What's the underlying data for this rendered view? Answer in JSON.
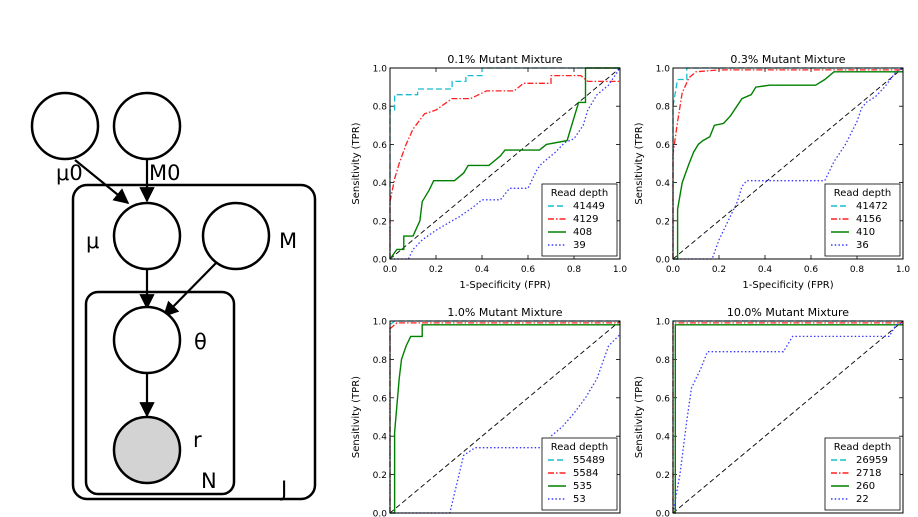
{
  "diagram": {
    "nodes": [
      {
        "id": "mu0",
        "label": "μ0",
        "observed": false
      },
      {
        "id": "M0",
        "label": "M0",
        "observed": false
      },
      {
        "id": "mu",
        "label": "μ",
        "observed": false
      },
      {
        "id": "M",
        "label": "M",
        "observed": false
      },
      {
        "id": "theta",
        "label": "θ",
        "observed": false
      },
      {
        "id": "r",
        "label": "r",
        "observed": true
      }
    ],
    "edges": [
      {
        "from": "mu0",
        "to": "mu"
      },
      {
        "from": "M0",
        "to": "mu"
      },
      {
        "from": "mu",
        "to": "theta"
      },
      {
        "from": "M",
        "to": "theta"
      },
      {
        "from": "theta",
        "to": "r"
      }
    ],
    "plates": [
      {
        "id": "J",
        "label": "J"
      },
      {
        "id": "N",
        "label": "N"
      }
    ],
    "colors": {
      "observed_fill": "#d3d3d3",
      "stroke": "#000000"
    }
  },
  "chart_data": [
    {
      "type": "line",
      "title": "0.1% Mutant Mixture",
      "xlabel": "1-Specificity (FPR)",
      "ylabel": "Sensitivity (TPR)",
      "xlim": [
        0,
        1
      ],
      "ylim": [
        0,
        1
      ],
      "xticks": [
        "0.0",
        "0.2",
        "0.4",
        "0.6",
        "0.8",
        "1.0"
      ],
      "yticks": [
        "0.0",
        "0.2",
        "0.4",
        "0.6",
        "0.8",
        "1.0"
      ],
      "legend_title": "Read depth",
      "legend_position": "lower-right",
      "diagonal": true,
      "series": [
        {
          "name": "41449",
          "color": "#17becf",
          "dash": "dashed",
          "points": [
            [
              0,
              0
            ],
            [
              0,
              0.78
            ],
            [
              0.02,
              0.78
            ],
            [
              0.02,
              0.86
            ],
            [
              0.12,
              0.86
            ],
            [
              0.12,
              0.89
            ],
            [
              0.27,
              0.89
            ],
            [
              0.27,
              0.93
            ],
            [
              0.33,
              0.93
            ],
            [
              0.33,
              0.96
            ],
            [
              0.4,
              0.96
            ],
            [
              0.4,
              1
            ],
            [
              1,
              1
            ]
          ]
        },
        {
          "name": "4129",
          "color": "#ff2020",
          "dash": "dashdot",
          "points": [
            [
              0,
              0
            ],
            [
              0,
              0.3
            ],
            [
              0.02,
              0.42
            ],
            [
              0.04,
              0.5
            ],
            [
              0.07,
              0.6
            ],
            [
              0.1,
              0.68
            ],
            [
              0.15,
              0.76
            ],
            [
              0.2,
              0.78
            ],
            [
              0.27,
              0.84
            ],
            [
              0.35,
              0.84
            ],
            [
              0.42,
              0.88
            ],
            [
              0.54,
              0.88
            ],
            [
              0.58,
              0.92
            ],
            [
              0.7,
              0.92
            ],
            [
              0.7,
              0.96
            ],
            [
              0.83,
              0.96
            ],
            [
              0.86,
              0.93
            ],
            [
              1,
              0.93
            ]
          ]
        },
        {
          "name": "408",
          "color": "#008000",
          "dash": "solid",
          "points": [
            [
              0,
              0
            ],
            [
              0.03,
              0.05
            ],
            [
              0.06,
              0.05
            ],
            [
              0.06,
              0.12
            ],
            [
              0.1,
              0.12
            ],
            [
              0.13,
              0.2
            ],
            [
              0.14,
              0.3
            ],
            [
              0.17,
              0.36
            ],
            [
              0.19,
              0.41
            ],
            [
              0.28,
              0.41
            ],
            [
              0.32,
              0.45
            ],
            [
              0.34,
              0.49
            ],
            [
              0.43,
              0.49
            ],
            [
              0.48,
              0.54
            ],
            [
              0.5,
              0.57
            ],
            [
              0.65,
              0.57
            ],
            [
              0.68,
              0.6
            ],
            [
              0.77,
              0.62
            ],
            [
              0.82,
              0.82
            ],
            [
              0.85,
              0.82
            ],
            [
              0.85,
              1
            ],
            [
              1,
              1
            ]
          ]
        },
        {
          "name": "39",
          "color": "#3a3aff",
          "dash": "dotted",
          "points": [
            [
              0,
              0
            ],
            [
              0.08,
              0
            ],
            [
              0.1,
              0.05
            ],
            [
              0.14,
              0.1
            ],
            [
              0.2,
              0.15
            ],
            [
              0.27,
              0.2
            ],
            [
              0.3,
              0.22
            ],
            [
              0.36,
              0.27
            ],
            [
              0.4,
              0.31
            ],
            [
              0.48,
              0.31
            ],
            [
              0.52,
              0.37
            ],
            [
              0.6,
              0.37
            ],
            [
              0.64,
              0.47
            ],
            [
              0.66,
              0.5
            ],
            [
              0.72,
              0.56
            ],
            [
              0.76,
              0.61
            ],
            [
              0.8,
              0.63
            ],
            [
              0.84,
              0.7
            ],
            [
              0.86,
              0.78
            ],
            [
              0.9,
              0.86
            ],
            [
              0.95,
              0.91
            ],
            [
              1,
              1
            ]
          ]
        }
      ]
    },
    {
      "type": "line",
      "title": "0.3% Mutant Mixture",
      "xlabel": "1-Specificity (FPR)",
      "ylabel": "Sensitivity (TPR)",
      "xlim": [
        0,
        1
      ],
      "ylim": [
        0,
        1
      ],
      "xticks": [
        "0.0",
        "0.2",
        "0.4",
        "0.6",
        "0.8",
        "1.0"
      ],
      "yticks": [
        "0.0",
        "0.2",
        "0.4",
        "0.6",
        "0.8",
        "1.0"
      ],
      "legend_title": "Read depth",
      "legend_position": "lower-right",
      "diagonal": true,
      "series": [
        {
          "name": "41472",
          "color": "#17becf",
          "dash": "dashed",
          "points": [
            [
              0,
              0
            ],
            [
              0,
              0.8
            ],
            [
              0.02,
              0.94
            ],
            [
              0.06,
              0.94
            ],
            [
              0.06,
              1
            ],
            [
              1,
              1
            ]
          ]
        },
        {
          "name": "4156",
          "color": "#ff2020",
          "dash": "dashdot",
          "points": [
            [
              0,
              0
            ],
            [
              0,
              0.55
            ],
            [
              0.02,
              0.72
            ],
            [
              0.04,
              0.87
            ],
            [
              0.07,
              0.95
            ],
            [
              0.1,
              0.98
            ],
            [
              0.2,
              0.99
            ],
            [
              1,
              0.99
            ]
          ]
        },
        {
          "name": "410",
          "color": "#008000",
          "dash": "solid",
          "points": [
            [
              0,
              0
            ],
            [
              0.02,
              0
            ],
            [
              0.02,
              0.26
            ],
            [
              0.04,
              0.4
            ],
            [
              0.07,
              0.5
            ],
            [
              0.09,
              0.56
            ],
            [
              0.11,
              0.6
            ],
            [
              0.13,
              0.62
            ],
            [
              0.16,
              0.64
            ],
            [
              0.18,
              0.7
            ],
            [
              0.22,
              0.71
            ],
            [
              0.25,
              0.75
            ],
            [
              0.3,
              0.84
            ],
            [
              0.34,
              0.86
            ],
            [
              0.36,
              0.9
            ],
            [
              0.42,
              0.91
            ],
            [
              0.62,
              0.91
            ],
            [
              0.66,
              0.94
            ],
            [
              0.7,
              0.98
            ],
            [
              1,
              0.98
            ]
          ]
        },
        {
          "name": "36",
          "color": "#3a3aff",
          "dash": "dotted",
          "points": [
            [
              0,
              0
            ],
            [
              0.17,
              0
            ],
            [
              0.2,
              0.1
            ],
            [
              0.24,
              0.2
            ],
            [
              0.28,
              0.3
            ],
            [
              0.3,
              0.38
            ],
            [
              0.32,
              0.41
            ],
            [
              0.66,
              0.41
            ],
            [
              0.7,
              0.51
            ],
            [
              0.75,
              0.6
            ],
            [
              0.8,
              0.72
            ],
            [
              0.82,
              0.79
            ],
            [
              0.84,
              0.82
            ],
            [
              0.88,
              0.85
            ],
            [
              0.92,
              0.9
            ],
            [
              0.97,
              0.98
            ],
            [
              1,
              1
            ]
          ]
        }
      ]
    },
    {
      "type": "line",
      "title": "1.0% Mutant Mixture",
      "xlabel": "",
      "ylabel": "Sensitivity (TPR)",
      "xlim": [
        0,
        1
      ],
      "ylim": [
        0,
        1
      ],
      "xticks": [],
      "yticks": [
        "0.0",
        "0.2",
        "0.4",
        "0.6",
        "0.8",
        "1.0"
      ],
      "legend_title": "Read depth",
      "legend_position": "lower-right",
      "diagonal": true,
      "series": [
        {
          "name": "55489",
          "color": "#17becf",
          "dash": "dashed",
          "points": [
            [
              0,
              0
            ],
            [
              0,
              0.98
            ],
            [
              0.02,
              1
            ],
            [
              1,
              1
            ]
          ]
        },
        {
          "name": "5584",
          "color": "#ff2020",
          "dash": "dashdot",
          "points": [
            [
              0,
              0
            ],
            [
              0,
              0.96
            ],
            [
              0.03,
              0.99
            ],
            [
              1,
              0.99
            ]
          ]
        },
        {
          "name": "535",
          "color": "#008000",
          "dash": "solid",
          "points": [
            [
              0,
              0
            ],
            [
              0.02,
              0
            ],
            [
              0.02,
              0.42
            ],
            [
              0.04,
              0.7
            ],
            [
              0.05,
              0.8
            ],
            [
              0.07,
              0.87
            ],
            [
              0.09,
              0.92
            ],
            [
              0.14,
              0.92
            ],
            [
              0.14,
              0.98
            ],
            [
              1,
              0.98
            ]
          ]
        },
        {
          "name": "53",
          "color": "#3a3aff",
          "dash": "dotted",
          "points": [
            [
              0,
              0
            ],
            [
              0.26,
              0
            ],
            [
              0.28,
              0.1
            ],
            [
              0.3,
              0.2
            ],
            [
              0.32,
              0.3
            ],
            [
              0.37,
              0.34
            ],
            [
              0.66,
              0.34
            ],
            [
              0.7,
              0.4
            ],
            [
              0.75,
              0.45
            ],
            [
              0.8,
              0.52
            ],
            [
              0.85,
              0.6
            ],
            [
              0.9,
              0.7
            ],
            [
              0.95,
              0.87
            ],
            [
              1,
              0.93
            ]
          ]
        }
      ]
    },
    {
      "type": "line",
      "title": "10.0% Mutant Mixture",
      "xlabel": "",
      "ylabel": "Sensitivity (TPR)",
      "xlim": [
        0,
        1
      ],
      "ylim": [
        0,
        1
      ],
      "xticks": [],
      "yticks": [
        "0.0",
        "0.2",
        "0.4",
        "0.6",
        "0.8",
        "1.0"
      ],
      "legend_title": "Read depth",
      "legend_position": "lower-right",
      "diagonal": true,
      "series": [
        {
          "name": "26959",
          "color": "#17becf",
          "dash": "dashed",
          "points": [
            [
              0,
              0
            ],
            [
              0,
              1
            ],
            [
              1,
              1
            ]
          ]
        },
        {
          "name": "2718",
          "color": "#ff2020",
          "dash": "dashdot",
          "points": [
            [
              0,
              0
            ],
            [
              0,
              0.99
            ],
            [
              1,
              0.99
            ]
          ]
        },
        {
          "name": "260",
          "color": "#008000",
          "dash": "solid",
          "points": [
            [
              0,
              0
            ],
            [
              0.01,
              0
            ],
            [
              0.01,
              0.98
            ],
            [
              1,
              0.98
            ]
          ]
        },
        {
          "name": "22",
          "color": "#3a3aff",
          "dash": "dotted",
          "points": [
            [
              0,
              0
            ],
            [
              0.03,
              0.2
            ],
            [
              0.06,
              0.48
            ],
            [
              0.08,
              0.65
            ],
            [
              0.12,
              0.75
            ],
            [
              0.15,
              0.84
            ],
            [
              0.48,
              0.84
            ],
            [
              0.52,
              0.92
            ],
            [
              0.94,
              0.92
            ],
            [
              0.97,
              0.98
            ],
            [
              1,
              0.99
            ]
          ]
        }
      ]
    }
  ]
}
